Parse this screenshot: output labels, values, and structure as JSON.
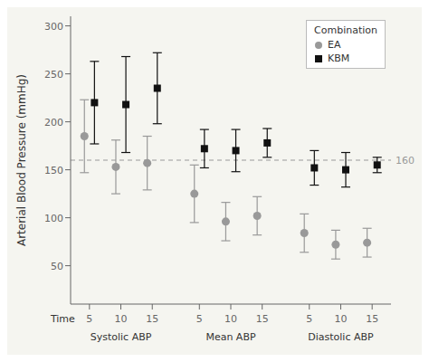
{
  "chart_data": {
    "type": "scatter",
    "ylabel": "Arterial Blood Pressure (mmHg)",
    "xlabel": "Time",
    "groups": [
      "Systolic ABP",
      "Mean ABP",
      "Diastolic ABP"
    ],
    "categories": [
      "5",
      "10",
      "15",
      "5",
      "10",
      "15",
      "5",
      "10",
      "15"
    ],
    "legend_title": "Combination",
    "legend": "upper right",
    "grid": false,
    "background_color": "#f5f5f0",
    "series": [
      {
        "name": "EA",
        "color": "#999999",
        "marker": "circle",
        "values": [
          185,
          153,
          157,
          125,
          96,
          102,
          84,
          72,
          74
        ],
        "errors": [
          38,
          28,
          28,
          30,
          20,
          20,
          20,
          15,
          15
        ]
      },
      {
        "name": "KBM",
        "color": "#111111",
        "marker": "square",
        "values": [
          220,
          218,
          235,
          172,
          170,
          178,
          152,
          150,
          155
        ],
        "errors": [
          43,
          50,
          37,
          20,
          22,
          15,
          18,
          18,
          8
        ]
      }
    ],
    "reference_line": {
      "value": 160,
      "label": "160",
      "color": "#999999",
      "line_style": "dashed"
    },
    "ylim": [
      10,
      310
    ],
    "yticks": [
      50,
      100,
      150,
      200,
      250,
      300
    ]
  }
}
